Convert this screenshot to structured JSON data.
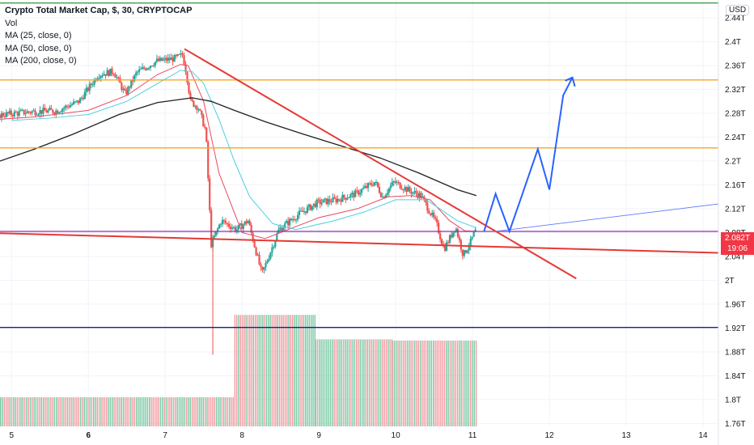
{
  "legend": {
    "title": "Crypto Total Market Cap, $, 30, CRYPTOCAP",
    "lines": [
      "Vol",
      "MA (25, close, 0)",
      "MA (50, close, 0)",
      "MA (200, close, 0)"
    ]
  },
  "currency_button": "USD",
  "last_price": {
    "value": "2.082T",
    "countdown": "19:06",
    "color": "#f23645"
  },
  "colors": {
    "up": "#26a69a",
    "down": "#ef5350",
    "vol_up": "#7bc8a4",
    "vol_down": "#f19ba0",
    "ma25": "#e84a5f",
    "ma50": "#4dd0e1",
    "ma200": "#1f1f1f",
    "trend": "#e53935",
    "support": "#f5a623",
    "projection": "#2962ff",
    "purple": "#9c27b0",
    "navy": "#1a237e",
    "green": "#43a047"
  },
  "chart_data": {
    "type": "candlestick",
    "title": "Crypto Total Market Cap, $, 30, CRYPTOCAP",
    "y_axis": {
      "unit": "T",
      "ylim": [
        1.755,
        2.47
      ],
      "ticks": [
        "1.76T",
        "1.8T",
        "1.84T",
        "1.88T",
        "1.92T",
        "1.96T",
        "2T",
        "2.04T",
        "2.08T",
        "2.12T",
        "2.16T",
        "2.2T",
        "2.24T",
        "2.28T",
        "2.32T",
        "2.36T",
        "2.4T",
        "2.44T"
      ]
    },
    "x_axis": {
      "ticks": [
        "5",
        "6",
        "7",
        "8",
        "9",
        "10",
        "11",
        "12",
        "13",
        "14"
      ],
      "bold": [
        "6"
      ],
      "range_days": [
        4.85,
        14.2
      ]
    },
    "price_path": [
      [
        4.85,
        2.277
      ],
      [
        5.3,
        2.283
      ],
      [
        5.6,
        2.284
      ],
      [
        5.9,
        2.3
      ],
      [
        6.15,
        2.345
      ],
      [
        6.35,
        2.35
      ],
      [
        6.5,
        2.312
      ],
      [
        6.65,
        2.348
      ],
      [
        6.9,
        2.367
      ],
      [
        7.15,
        2.372
      ],
      [
        7.25,
        2.378
      ],
      [
        7.3,
        2.345
      ],
      [
        7.35,
        2.3
      ],
      [
        7.45,
        2.29
      ],
      [
        7.55,
        2.25
      ],
      [
        7.62,
        2.06
      ],
      [
        7.75,
        2.1
      ],
      [
        7.95,
        2.085
      ],
      [
        8.1,
        2.1
      ],
      [
        8.28,
        2.01
      ],
      [
        8.5,
        2.085
      ],
      [
        8.75,
        2.11
      ],
      [
        9.0,
        2.13
      ],
      [
        9.25,
        2.135
      ],
      [
        9.5,
        2.145
      ],
      [
        9.75,
        2.165
      ],
      [
        9.85,
        2.14
      ],
      [
        10.0,
        2.165
      ],
      [
        10.2,
        2.15
      ],
      [
        10.35,
        2.142
      ],
      [
        10.55,
        2.095
      ],
      [
        10.65,
        2.052
      ],
      [
        10.8,
        2.09
      ],
      [
        10.9,
        2.042
      ],
      [
        11.0,
        2.065
      ],
      [
        11.05,
        2.082
      ]
    ],
    "series": [
      {
        "name": "MA (25, close, 0)",
        "points": [
          [
            4.85,
            2.27
          ],
          [
            5.3,
            2.274
          ],
          [
            6.0,
            2.285
          ],
          [
            6.5,
            2.31
          ],
          [
            6.9,
            2.345
          ],
          [
            7.2,
            2.362
          ],
          [
            7.3,
            2.36
          ],
          [
            7.5,
            2.3
          ],
          [
            7.7,
            2.18
          ],
          [
            8.0,
            2.08
          ],
          [
            8.3,
            2.07
          ],
          [
            8.6,
            2.085
          ],
          [
            9.0,
            2.105
          ],
          [
            9.5,
            2.12
          ],
          [
            9.9,
            2.14
          ],
          [
            10.2,
            2.142
          ],
          [
            10.45,
            2.135
          ],
          [
            10.7,
            2.1
          ],
          [
            10.9,
            2.083
          ],
          [
            11.05,
            2.082
          ]
        ]
      },
      {
        "name": "MA (50, close, 0)",
        "points": [
          [
            5.0,
            2.268
          ],
          [
            5.5,
            2.272
          ],
          [
            6.0,
            2.278
          ],
          [
            6.5,
            2.3
          ],
          [
            6.9,
            2.33
          ],
          [
            7.2,
            2.352
          ],
          [
            7.35,
            2.35
          ],
          [
            7.5,
            2.33
          ],
          [
            7.7,
            2.27
          ],
          [
            7.9,
            2.2
          ],
          [
            8.1,
            2.14
          ],
          [
            8.4,
            2.095
          ],
          [
            8.7,
            2.085
          ],
          [
            9.2,
            2.1
          ],
          [
            9.6,
            2.115
          ],
          [
            10.0,
            2.135
          ],
          [
            10.4,
            2.135
          ],
          [
            10.8,
            2.1
          ],
          [
            11.05,
            2.088
          ]
        ]
      },
      {
        "name": "MA (200, close, 0)",
        "points": [
          [
            4.85,
            2.2
          ],
          [
            5.3,
            2.22
          ],
          [
            5.8,
            2.245
          ],
          [
            6.4,
            2.278
          ],
          [
            6.9,
            2.298
          ],
          [
            7.35,
            2.306
          ],
          [
            7.6,
            2.3
          ],
          [
            7.9,
            2.285
          ],
          [
            8.3,
            2.266
          ],
          [
            8.8,
            2.245
          ],
          [
            9.3,
            2.225
          ],
          [
            9.8,
            2.205
          ],
          [
            10.3,
            2.18
          ],
          [
            10.8,
            2.152
          ],
          [
            11.05,
            2.142
          ]
        ]
      }
    ],
    "volume": [
      {
        "from": 4.85,
        "to": 7.9,
        "level": 1.804
      },
      {
        "from": 7.9,
        "to": 8.95,
        "level": 1.942
      },
      {
        "from": 8.95,
        "to": 9.95,
        "level": 1.901
      },
      {
        "from": 9.95,
        "to": 11.05,
        "level": 1.899
      }
    ],
    "drawings": {
      "horizontal_lines": [
        {
          "name": "resistance-upper",
          "y": 2.336,
          "color": "#f5a623"
        },
        {
          "name": "resistance-mid",
          "y": 2.222,
          "color": "#f5a623"
        },
        {
          "name": "purple-level",
          "y": 2.082,
          "color": "#9c27b0"
        },
        {
          "name": "navy-level",
          "y": 1.921,
          "color": "#1a237e"
        },
        {
          "name": "top-green",
          "y": 2.465,
          "color": "#43a047"
        }
      ],
      "trend_lines": [
        {
          "name": "descending-trendline",
          "from": [
            7.25,
            2.388
          ],
          "to": [
            12.35,
            2.003
          ],
          "color": "#e53935"
        },
        {
          "name": "lower-trendline",
          "from": [
            4.85,
            2.079
          ],
          "to": [
            14.2,
            2.046
          ],
          "color": "#e53935"
        },
        {
          "name": "ma-fan-line",
          "from": [
            11.3,
            2.082
          ],
          "to": [
            14.2,
            2.128
          ],
          "color": "#5c7cfa"
        }
      ],
      "projection_path": [
        [
          11.15,
          2.082
        ],
        [
          11.3,
          2.145
        ],
        [
          11.48,
          2.082
        ],
        [
          11.65,
          2.145
        ],
        [
          11.85,
          2.22
        ],
        [
          12.0,
          2.152
        ],
        [
          12.18,
          2.31
        ],
        [
          12.3,
          2.34
        ]
      ]
    }
  }
}
